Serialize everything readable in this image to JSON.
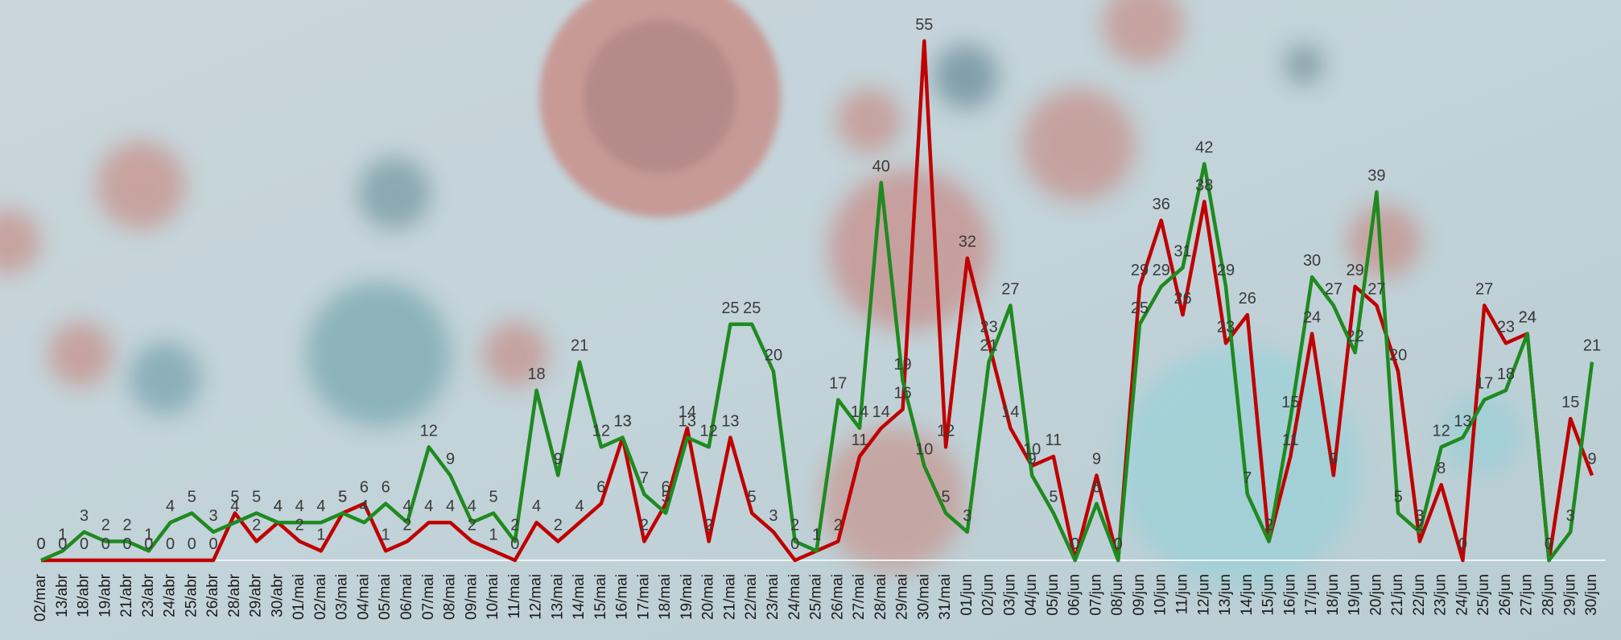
{
  "chart_data": {
    "type": "line",
    "categories": [
      "02/mar",
      "13/abr",
      "18/abr",
      "19/abr",
      "21/abr",
      "23/abr",
      "24/abr",
      "25/abr",
      "26/abr",
      "28/abr",
      "29/abr",
      "30/abr",
      "01/mai",
      "02/mai",
      "03/mai",
      "04/mai",
      "05/mai",
      "06/mai",
      "07/mai",
      "08/mai",
      "09/mai",
      "10/mai",
      "11/mai",
      "12/mai",
      "13/mai",
      "14/mai",
      "15/mai",
      "16/mai",
      "17/mai",
      "18/mai",
      "19/mai",
      "20/mai",
      "21/mai",
      "22/mai",
      "23/mai",
      "24/mai",
      "25/mai",
      "26/mai",
      "27/mai",
      "28/mai",
      "29/mai",
      "30/mai",
      "31/mai",
      "01/jun",
      "02/jun",
      "03/jun",
      "04/jun",
      "05/jun",
      "06/jun",
      "07/jun",
      "08/jun",
      "09/jun",
      "10/jun",
      "11/jun",
      "12/jun",
      "13/jun",
      "14/jun",
      "15/jun",
      "16/jun",
      "17/jun",
      "18/jun",
      "19/jun",
      "20/jun",
      "21/jun",
      "22/jun",
      "23/jun",
      "24/jun",
      "25/jun",
      "26/jun",
      "27/jun",
      "28/jun",
      "29/jun",
      "30/jun"
    ],
    "series": [
      {
        "color": "#c00000",
        "values": [
          0,
          0,
          0,
          0,
          0,
          0,
          0,
          0,
          0,
          5,
          2,
          4,
          2,
          1,
          5,
          6,
          1,
          2,
          4,
          4,
          2,
          1,
          0,
          4,
          2,
          4,
          6,
          13,
          2,
          6,
          14,
          2,
          13,
          5,
          3,
          0,
          1,
          2,
          11,
          14,
          16,
          55,
          12,
          32,
          23,
          14,
          10,
          11,
          0,
          9,
          0,
          29,
          36,
          26,
          38,
          23,
          26,
          2,
          11,
          24,
          9,
          29,
          27,
          20,
          2,
          8,
          0,
          27,
          23,
          24,
          0,
          15,
          9
        ]
      },
      {
        "color": "#1f8a1f",
        "values": [
          0,
          1,
          3,
          2,
          2,
          1,
          4,
          5,
          3,
          4,
          5,
          4,
          4,
          4,
          5,
          4,
          6,
          4,
          12,
          9,
          4,
          5,
          2,
          18,
          9,
          21,
          12,
          13,
          7,
          5,
          13,
          12,
          25,
          25,
          20,
          2,
          1,
          17,
          14,
          40,
          19,
          10,
          5,
          3,
          21,
          27,
          9,
          5,
          0,
          6,
          0,
          25,
          29,
          31,
          42,
          29,
          7,
          2,
          15,
          30,
          27,
          22,
          39,
          5,
          3,
          12,
          13,
          17,
          18,
          24,
          0,
          3,
          21
        ]
      }
    ]
  }
}
